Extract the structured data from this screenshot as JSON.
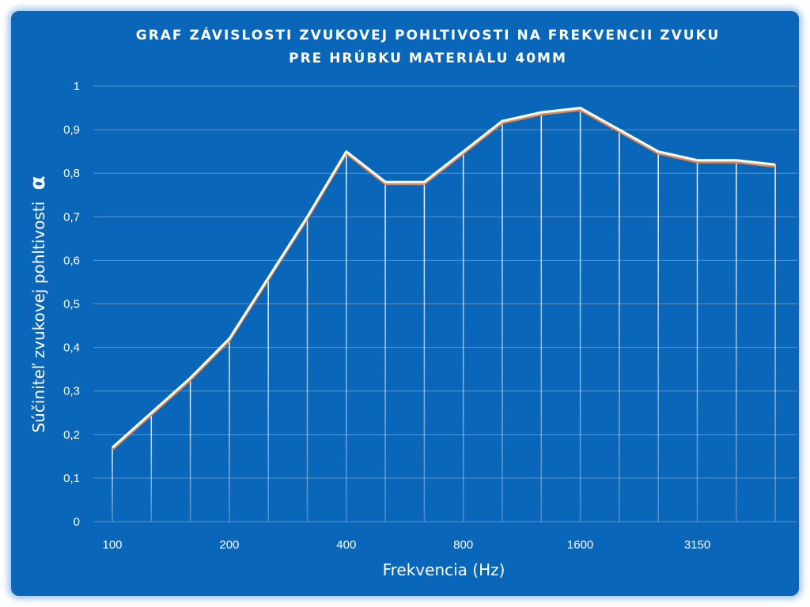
{
  "chart_data": {
    "type": "line",
    "title_line1": "GRAF ZÁVISLOSTI ZVUKOVEJ POHLTIVOSTI NA FREKVENCII ZVUKU",
    "title_line2": "PRE HRÚBKU MATERIÁLU 40MM",
    "xlabel": "Frekvencia (Hz)",
    "ylabel": "Súčiniteľ zvukovej pohltivosti",
    "ylabel_symbol": "α",
    "ylim": [
      0,
      1
    ],
    "y_ticks": [
      "0",
      "0,1",
      "0,2",
      "0,3",
      "0,4",
      "0,5",
      "0,6",
      "0,7",
      "0,8",
      "0,9",
      "1"
    ],
    "x_tick_labels": [
      "100",
      "200",
      "400",
      "800",
      "1600",
      "3150"
    ],
    "grid": "horizontal gridlines and vertical drop lines",
    "series": [
      {
        "values": [
          0.17,
          0.25,
          0.33,
          0.42,
          0.56,
          0.7,
          0.85,
          0.78,
          0.78,
          0.85,
          0.92,
          0.94,
          0.95,
          0.9,
          0.85,
          0.83,
          0.83,
          0.82
        ]
      }
    ],
    "colors": {
      "background": "#0a66b9",
      "line": "#ffffff",
      "line_shadow": "#d98a5a",
      "text": "#ffffff"
    }
  }
}
